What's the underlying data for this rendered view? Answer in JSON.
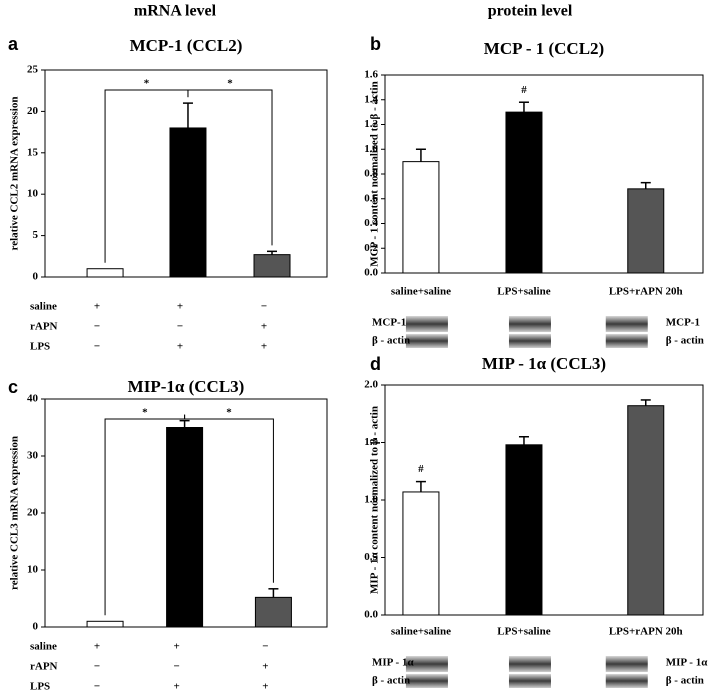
{
  "headers": [
    "mRNA level",
    "protein level"
  ],
  "chart_data": [
    {
      "type": "bar",
      "panel": "a",
      "title": "MCP-1 (CCL2)",
      "ylabel": "relative CCL2 mRNA expression",
      "categories": [
        null,
        null,
        null
      ],
      "values": [
        1,
        18,
        2.7
      ],
      "errors": [
        null,
        3,
        0.4
      ],
      "colors": [
        "#ffffff",
        "#000000",
        "#555555"
      ],
      "ylim": [
        0,
        25
      ],
      "yticks": [
        0,
        5,
        10,
        15,
        20,
        25
      ],
      "significance": [
        {
          "between": [
            0,
            1
          ],
          "label": "*"
        },
        {
          "between": [
            1,
            2
          ],
          "label": "*"
        }
      ],
      "treatments": [
        {
          "name": "saline",
          "marks": [
            "+",
            "+",
            "−"
          ]
        },
        {
          "name": "rAPN",
          "marks": [
            "−",
            "−",
            "+"
          ]
        },
        {
          "name": "LPS",
          "marks": [
            "−",
            "+",
            "+"
          ]
        }
      ]
    },
    {
      "type": "bar",
      "panel": "b",
      "title": "MCP - 1 (CCL2)",
      "ylabel": "MCP - 1 content normalized to β - actin",
      "categories": [
        "saline+saline",
        "LPS+saline",
        "LPS+rAPN 20h"
      ],
      "values": [
        0.9,
        1.3,
        0.68
      ],
      "errors": [
        0.1,
        0.08,
        0.05
      ],
      "colors": [
        "#ffffff",
        "#000000",
        "#555555"
      ],
      "ylim": [
        0,
        1.6
      ],
      "yticks": [
        {
          "value": 0,
          "label": "0.0"
        },
        {
          "value": 0.2,
          "label": "0.2"
        },
        {
          "value": 0.4,
          "label": "0.4"
        },
        {
          "value": 0.6,
          "label": "0.6"
        },
        {
          "value": 0.8,
          "label": "0.8"
        },
        {
          "value": 1,
          "label": "1.0"
        },
        {
          "value": 1.2,
          "label": "1.2"
        },
        {
          "value": 1.4,
          "label": "1.4"
        },
        {
          "value": 1.6,
          "label": "1.6"
        }
      ],
      "annotations": [
        {
          "bar": 1,
          "label": "#"
        }
      ],
      "blots": {
        "left": [
          "MCP-1",
          "β - actin"
        ],
        "right": [
          "MCP-1",
          "β - actin"
        ]
      }
    },
    {
      "type": "bar",
      "panel": "c",
      "title": "MIP-1α (CCL3)",
      "ylabel": "relative CCL3 mRNA expression",
      "categories": [
        null,
        null,
        null
      ],
      "values": [
        1,
        35,
        5.2
      ],
      "errors": [
        null,
        1.2,
        1.5
      ],
      "colors": [
        "#ffffff",
        "#000000",
        "#555555"
      ],
      "ylim": [
        0,
        40
      ],
      "yticks": [
        0,
        10,
        20,
        30,
        40
      ],
      "significance": [
        {
          "between": [
            0,
            1
          ],
          "label": "*"
        },
        {
          "between": [
            1,
            2
          ],
          "label": "*"
        }
      ],
      "treatments": [
        {
          "name": "saline",
          "marks": [
            "+",
            "+",
            "−"
          ]
        },
        {
          "name": "rAPN",
          "marks": [
            "−",
            "−",
            "+"
          ]
        },
        {
          "name": "LPS",
          "marks": [
            "−",
            "+",
            "+"
          ]
        }
      ]
    },
    {
      "type": "bar",
      "panel": "d",
      "title": "MIP - 1α   (CCL3)",
      "ylabel": "MIP - 1α content normalized to β - actin",
      "categories": [
        "saline+saline",
        "LPS+saline",
        "LPS+rAPN 20h"
      ],
      "values": [
        1.07,
        1.48,
        1.82
      ],
      "errors": [
        0.09,
        0.07,
        0.05
      ],
      "colors": [
        "#ffffff",
        "#000000",
        "#555555"
      ],
      "ylim": [
        0,
        2
      ],
      "yticks": [
        {
          "value": 0,
          "label": "0.0"
        },
        {
          "value": 0.5,
          "label": "0.5"
        },
        {
          "value": 1,
          "label": "1.0"
        },
        {
          "value": 1.5,
          "label": "1.5"
        },
        {
          "value": 2,
          "label": "2.0"
        }
      ],
      "annotations": [
        {
          "bar": 0,
          "label": "#"
        }
      ],
      "blots": {
        "left": [
          "MIP - 1α",
          "β - actin"
        ],
        "right": [
          "MIP - 1α",
          "β - actin"
        ]
      }
    }
  ]
}
